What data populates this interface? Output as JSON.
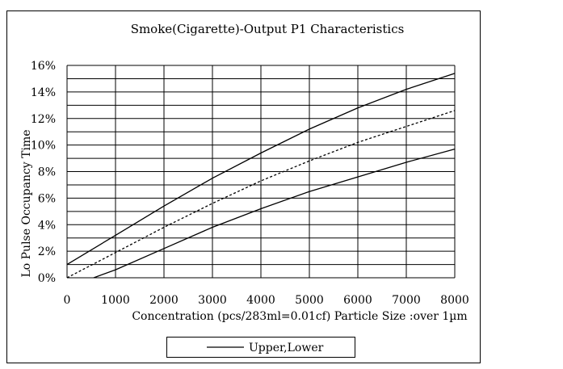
{
  "chart_data": {
    "type": "line",
    "title": "Smoke(Cigarette)-Output P1 Characteristics",
    "xlabel": "Concentration (pcs/283ml=0.01cf)  Particle Size :over 1µm",
    "ylabel": "Lo Pulse Occupancy Time",
    "xlim": [
      0,
      8000
    ],
    "ylim": [
      0,
      16
    ],
    "x_ticks": [
      0,
      1000,
      2000,
      3000,
      4000,
      5000,
      6000,
      7000,
      8000
    ],
    "x_tick_labels": [
      "0",
      "1000",
      "2000",
      "3000",
      "4000",
      "5000",
      "6000",
      "7000",
      "8000"
    ],
    "y_ticks": [
      0,
      2,
      4,
      6,
      8,
      10,
      12,
      14,
      16
    ],
    "y_tick_labels": [
      "0%",
      "2%",
      "4%",
      "6%",
      "8%",
      "10%",
      "12%",
      "14%",
      "16%"
    ],
    "minor_y_gridlines": [
      1,
      3,
      5,
      7,
      9,
      11,
      13,
      15
    ],
    "grid": true,
    "legend": {
      "label": "Upper,Lower",
      "position": "bottom"
    },
    "series": [
      {
        "style": "solid",
        "x": [
          0,
          1000,
          2000,
          3000,
          4000,
          5000,
          6000,
          7000,
          8000
        ],
        "y": [
          1.0,
          3.2,
          5.4,
          7.5,
          9.4,
          11.2,
          12.8,
          14.2,
          15.4
        ]
      },
      {
        "style": "dashed",
        "x": [
          0,
          1000,
          2000,
          3000,
          4000,
          5000,
          6000,
          7000,
          8000
        ],
        "y": [
          0.0,
          1.9,
          3.8,
          5.6,
          7.3,
          8.8,
          10.2,
          11.4,
          12.6
        ]
      },
      {
        "style": "solid",
        "x": [
          550,
          1000,
          2000,
          3000,
          4000,
          5000,
          6000,
          7000,
          8000
        ],
        "y": [
          0.0,
          0.6,
          2.2,
          3.8,
          5.2,
          6.5,
          7.6,
          8.7,
          9.7
        ]
      }
    ]
  }
}
